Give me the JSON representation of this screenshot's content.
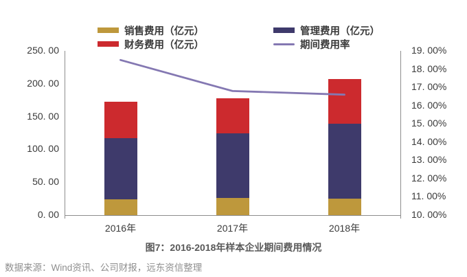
{
  "figure": {
    "caption": "图7：2016-2018年样本企业期间费用情况",
    "source": "数据来源：Wind资讯、公司财报，远东资信整理"
  },
  "chart_data": {
    "type": "bar",
    "subtype": "stacked-bars-with-line-overlay",
    "title": "图7：2016-2018年样本企业期间费用情况",
    "categories": [
      "2016年",
      "2017年",
      "2018年"
    ],
    "series": [
      {
        "key": "sales-expenses",
        "name": "销售费用（亿元）",
        "type": "bar",
        "axis": "left",
        "color": "#BE983C",
        "values": [
          24,
          26,
          25
        ]
      },
      {
        "key": "management-expenses",
        "name": "管理费用（亿元）",
        "type": "bar",
        "axis": "left",
        "color": "#3E3A6B",
        "values": [
          93,
          98,
          114
        ]
      },
      {
        "key": "financial-expenses",
        "name": "财务费用（亿元）",
        "type": "bar",
        "axis": "left",
        "color": "#CC2A2E",
        "values": [
          56,
          54,
          68
        ]
      },
      {
        "key": "period-expense-ratio",
        "name": "期间费用率",
        "type": "line",
        "axis": "right",
        "color": "#8478B2",
        "values": [
          18.5,
          16.8,
          16.6
        ]
      }
    ],
    "stack_totals": [
      173,
      178,
      207
    ],
    "left_axis": {
      "min": 0,
      "max": 250,
      "step": 50,
      "tick_labels": [
        "0. 00",
        "50. 00",
        "100. 00",
        "150. 00",
        "200. 00",
        "250. 00"
      ]
    },
    "right_axis": {
      "min": 10,
      "max": 19,
      "step": 1,
      "unit": "%",
      "tick_labels": [
        "10. 00%",
        "11. 00%",
        "12. 00%",
        "13. 00%",
        "14. 00%",
        "15. 00%",
        "16. 00%",
        "17. 00%",
        "18. 00%",
        "19. 00%"
      ]
    },
    "legend_position": "top",
    "grid": false
  },
  "colors": {
    "axis": "#8C8C8C",
    "tick_text": "#3A3A3A",
    "caption_text": "#595959",
    "source_text": "#8F8F8F",
    "background": "#FFFFFF"
  }
}
